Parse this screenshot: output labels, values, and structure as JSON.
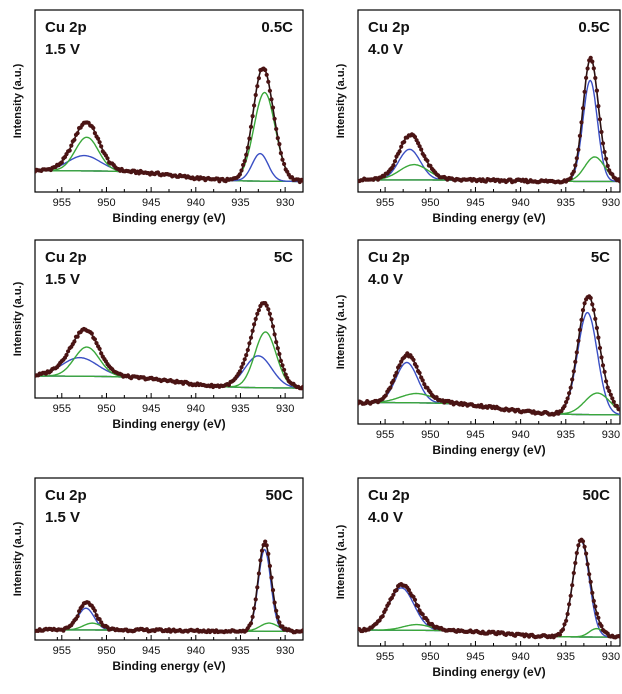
{
  "colors": {
    "background": "#d0d0d0",
    "component_1": "#3a4fc4",
    "component_2": "#3aa83a",
    "measured": "#4a1414",
    "envelope": "#2a1010"
  },
  "chart_data": [
    {
      "type": "line",
      "annotation_element": "Cu 2p",
      "annotation_voltage": "1.5 V",
      "annotation_rate": "0.5C",
      "xlabel": "Binding energy (eV)",
      "ylabel": "Intensity (a.u.)",
      "xlim": [
        958,
        928
      ],
      "x_reversed": true,
      "xticks": [
        955,
        950,
        945,
        940,
        935,
        930
      ],
      "ylim": [
        0,
        1
      ],
      "peaks": [
        {
          "series": "component_1",
          "center": 952.5,
          "height": 0.1,
          "width": 1.8
        },
        {
          "series": "component_2",
          "center": 952.2,
          "height": 0.22,
          "width": 1.3
        },
        {
          "series": "component_1",
          "center": 932.8,
          "height": 0.18,
          "width": 0.9
        },
        {
          "series": "component_2",
          "center": 932.3,
          "height": 0.58,
          "width": 1.2
        }
      ],
      "baseline": {
        "left": 0.1,
        "right": 0.03,
        "step_at": 942
      }
    },
    {
      "type": "line",
      "annotation_element": "Cu 2p",
      "annotation_voltage": "4.0 V",
      "annotation_rate": "0.5C",
      "xlabel": "Binding energy (eV)",
      "ylabel": "Intensity (a.u.)",
      "xlim": [
        958,
        929
      ],
      "x_reversed": true,
      "xticks": [
        955,
        950,
        945,
        940,
        935,
        930
      ],
      "ylim": [
        0,
        1
      ],
      "peaks": [
        {
          "series": "component_1",
          "center": 952.3,
          "height": 0.2,
          "width": 1.2
        },
        {
          "series": "component_2",
          "center": 951.8,
          "height": 0.1,
          "width": 1.6
        },
        {
          "series": "component_1",
          "center": 932.3,
          "height": 0.66,
          "width": 0.8
        },
        {
          "series": "component_2",
          "center": 931.8,
          "height": 0.16,
          "width": 1.1
        }
      ],
      "baseline": {
        "left": 0.04,
        "right": 0.03,
        "step_at": 942
      }
    },
    {
      "type": "line",
      "annotation_element": "Cu 2p",
      "annotation_voltage": "1.5 V",
      "annotation_rate": "5C",
      "xlabel": "Binding energy (eV)",
      "ylabel": "Intensity (a.u.)",
      "xlim": [
        958,
        928
      ],
      "x_reversed": true,
      "xticks": [
        955,
        950,
        945,
        940,
        935,
        930
      ],
      "ylim": [
        0,
        1
      ],
      "peaks": [
        {
          "series": "component_1",
          "center": 953.0,
          "height": 0.14,
          "width": 2.0
        },
        {
          "series": "component_2",
          "center": 952.2,
          "height": 0.22,
          "width": 1.4
        },
        {
          "series": "component_1",
          "center": 933.0,
          "height": 0.24,
          "width": 1.5
        },
        {
          "series": "component_2",
          "center": 932.2,
          "height": 0.42,
          "width": 1.2
        }
      ],
      "baseline": {
        "left": 0.12,
        "right": 0.03,
        "step_at": 942
      }
    },
    {
      "type": "line",
      "annotation_element": "Cu 2p",
      "annotation_voltage": "4.0 V",
      "annotation_rate": "5C",
      "xlabel": "Binding energy (eV)",
      "ylabel": "Intensity (a.u.)",
      "xlim": [
        958,
        929
      ],
      "x_reversed": true,
      "xticks": [
        955,
        950,
        945,
        940,
        935,
        930
      ],
      "ylim": [
        0,
        1
      ],
      "peaks": [
        {
          "series": "component_1",
          "center": 952.6,
          "height": 0.26,
          "width": 1.2
        },
        {
          "series": "component_2",
          "center": 951.5,
          "height": 0.06,
          "width": 1.8
        },
        {
          "series": "component_1",
          "center": 932.6,
          "height": 0.66,
          "width": 1.1
        },
        {
          "series": "component_2",
          "center": 931.5,
          "height": 0.14,
          "width": 1.4
        }
      ],
      "baseline": {
        "left": 0.1,
        "right": 0.02,
        "step_at": 942
      }
    },
    {
      "type": "line",
      "annotation_element": "Cu 2p",
      "annotation_voltage": "1.5 V",
      "annotation_rate": "50C",
      "xlabel": "Binding energy (eV)",
      "ylabel": "Intensity (a.u.)",
      "xlim": [
        958,
        928
      ],
      "x_reversed": true,
      "xticks": [
        955,
        950,
        945,
        940,
        935,
        930,
        928
      ],
      "xticklabels": [
        "955",
        "950",
        "945",
        "940",
        "935",
        "930",
        ""
      ],
      "ylim": [
        0,
        1
      ],
      "peaks": [
        {
          "series": "component_1",
          "center": 952.3,
          "height": 0.16,
          "width": 0.9
        },
        {
          "series": "component_2",
          "center": 951.6,
          "height": 0.05,
          "width": 1.0
        },
        {
          "series": "component_1",
          "center": 932.3,
          "height": 0.6,
          "width": 0.7
        },
        {
          "series": "component_2",
          "center": 931.8,
          "height": 0.06,
          "width": 1.0
        }
      ],
      "baseline": {
        "left": 0.03,
        "right": 0.02,
        "step_at": 942
      }
    },
    {
      "type": "line",
      "annotation_element": "Cu 2p",
      "annotation_voltage": "4.0 V",
      "annotation_rate": "50C",
      "xlabel": "Binding energy (eV)",
      "ylabel": "Intensity (a.u.)",
      "xlim": [
        958,
        929
      ],
      "x_reversed": true,
      "xticks": [
        955,
        950,
        945,
        940,
        935,
        930
      ],
      "ylim": [
        0,
        1
      ],
      "peaks": [
        {
          "series": "component_1",
          "center": 953.2,
          "height": 0.3,
          "width": 1.4
        },
        {
          "series": "component_2",
          "center": 951.5,
          "height": 0.04,
          "width": 1.5
        },
        {
          "series": "component_1",
          "center": 933.3,
          "height": 0.68,
          "width": 0.9
        },
        {
          "series": "component_2",
          "center": 931.6,
          "height": 0.06,
          "width": 0.8
        }
      ],
      "baseline": {
        "left": 0.07,
        "right": 0.02,
        "step_at": 942
      }
    }
  ]
}
